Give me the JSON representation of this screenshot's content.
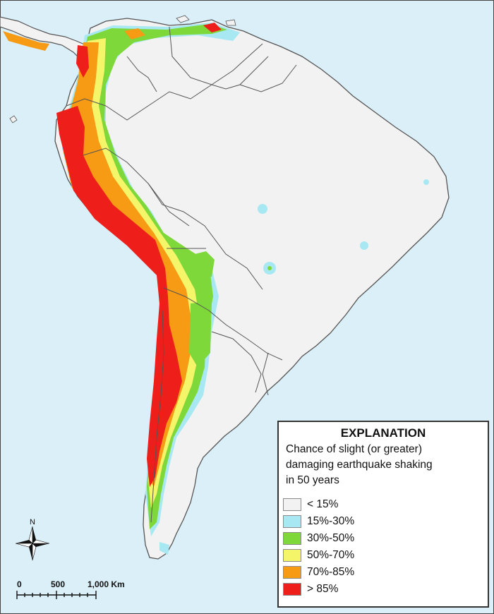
{
  "legend": {
    "title": "EXPLANATION",
    "description_lines": [
      "Chance of slight (or greater)",
      "damaging earthquake shaking",
      "in 50 years"
    ],
    "items": [
      {
        "label": "< 15%",
        "color": "#f2f2f2"
      },
      {
        "label": "15%-30%",
        "color": "#a8e8f2"
      },
      {
        "label": "30%-50%",
        "color": "#7ed83a"
      },
      {
        "label": "50%-70%",
        "color": "#f5f56a"
      },
      {
        "label": "70%-85%",
        "color": "#f79a14"
      },
      {
        "label": "> 85%",
        "color": "#ee1f1a"
      }
    ]
  },
  "north_arrow": {
    "label": "N"
  },
  "scale_bar": {
    "labels": [
      "0",
      "500",
      "1,000 Km"
    ]
  },
  "colors": {
    "ocean": "#dbeff8",
    "land": "#f2f2f2",
    "border": "#555555"
  }
}
